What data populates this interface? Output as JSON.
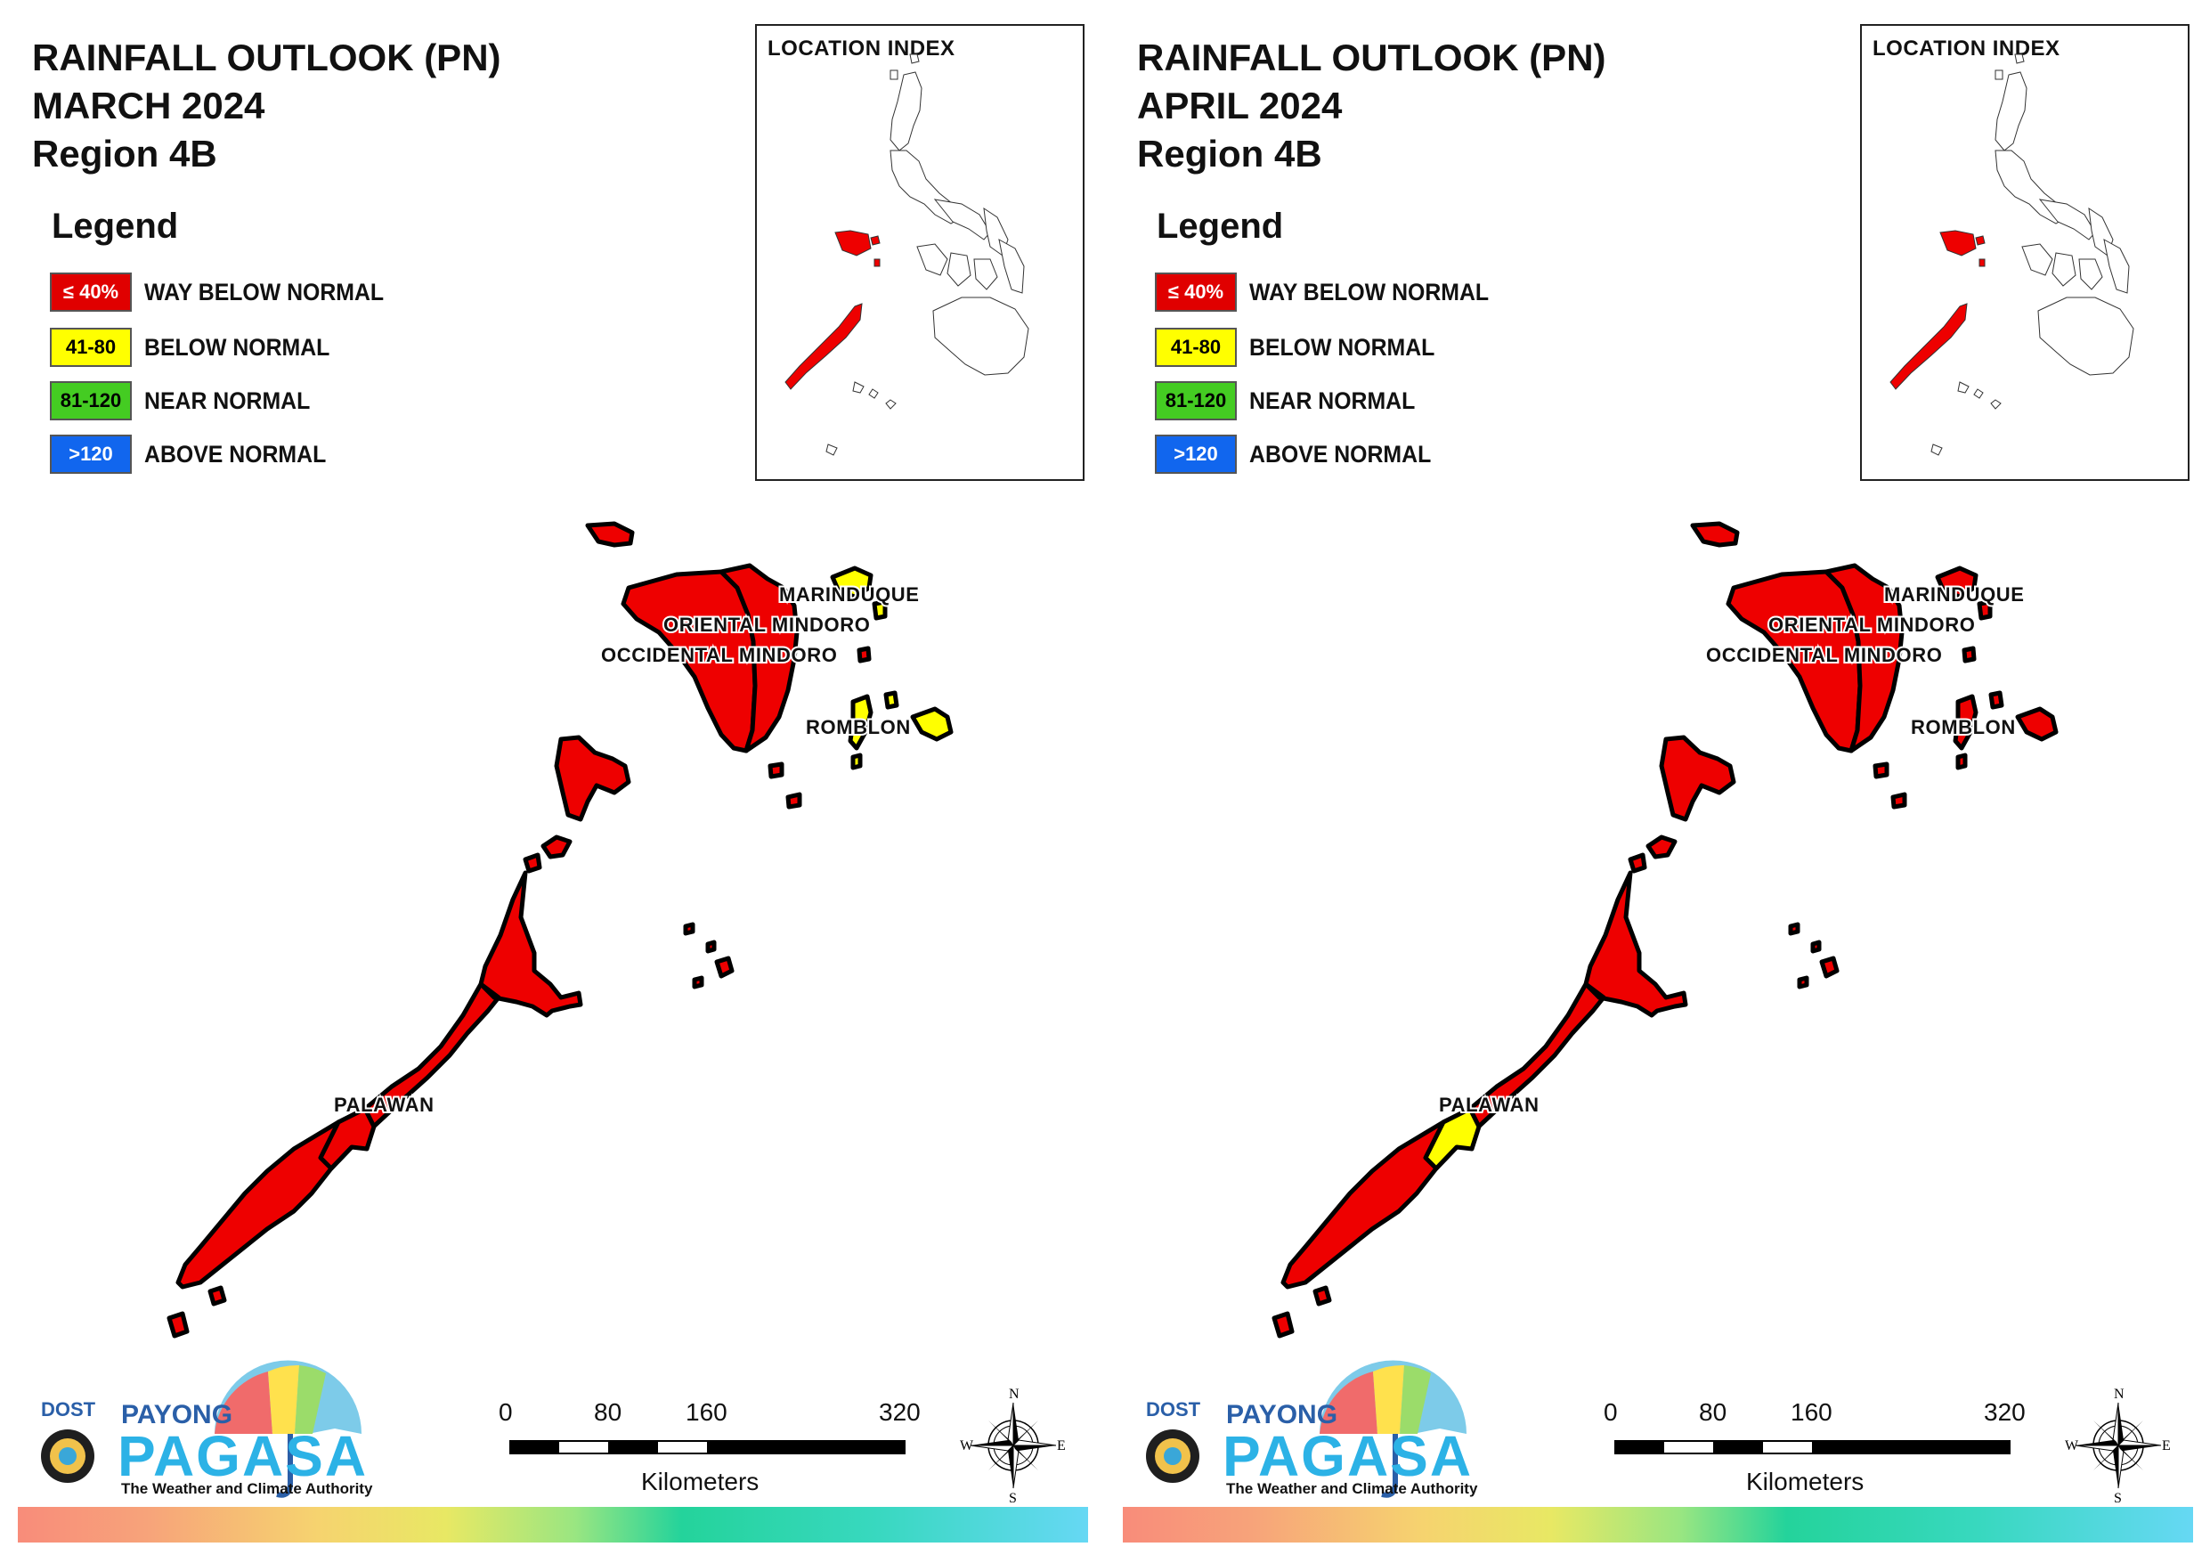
{
  "panels": [
    {
      "title_line1": "RAINFALL OUTLOOK (PN)",
      "title_line2": "MARCH 2024",
      "title_line3": "Region 4B",
      "provinces": {
        "marinduque": "yellow",
        "oriental_mindoro": "red",
        "occidental_mindoro": "red",
        "romblon": "yellow",
        "palawan": "red",
        "palawan_central_patch": "red"
      }
    },
    {
      "title_line1": "RAINFALL OUTLOOK (PN)",
      "title_line2": "APRIL 2024",
      "title_line3": "Region 4B",
      "provinces": {
        "marinduque": "red",
        "oriental_mindoro": "red",
        "occidental_mindoro": "red",
        "romblon": "red",
        "palawan": "red",
        "palawan_central_patch": "yellow"
      }
    }
  ],
  "legend": {
    "heading": "Legend",
    "items": [
      {
        "range": "≤ 40%",
        "label": "WAY BELOW NORMAL",
        "color": "#e00000",
        "text_color": "#ffffff"
      },
      {
        "range": "41-80",
        "label": "BELOW NORMAL",
        "color": "#ffff00",
        "text_color": "#000000"
      },
      {
        "range": "81-120",
        "label": "NEAR NORMAL",
        "color": "#44cc22",
        "text_color": "#000000"
      },
      {
        "range": ">120",
        "label": "ABOVE NORMAL",
        "color": "#1166ee",
        "text_color": "#ffffff"
      }
    ]
  },
  "colors": {
    "red": "#ee0000",
    "yellow": "#ffff00"
  },
  "inset": {
    "title": "LOCATION INDEX"
  },
  "map_labels": {
    "marinduque": "MARINDUQUE",
    "oriental_mindoro": "ORIENTAL MINDORO",
    "occidental_mindoro": "OCCIDENTAL MINDORO",
    "romblon": "ROMBLON",
    "palawan": "PALAWAN"
  },
  "scalebar": {
    "ticks": [
      "0",
      "80",
      "160",
      "320"
    ],
    "unit": "Kilometers"
  },
  "compass": {
    "n": "N",
    "e": "E",
    "s": "S",
    "w": "W"
  },
  "logo": {
    "dost": "DOST",
    "payong": "PAYONG",
    "pagasa": "PAGASA",
    "tagline": "The Weather and Climate Authority"
  }
}
